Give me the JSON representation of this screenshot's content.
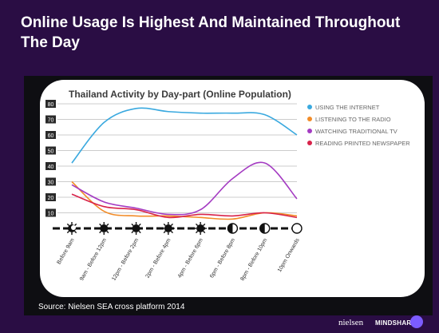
{
  "slide": {
    "title": "Online Usage Is Highest And Maintained Throughout The Day",
    "source": "Source: Nielsen SEA cross platform 2014",
    "logo_left": "nielsen",
    "logo_right": "MINDSHARE"
  },
  "chart_data": {
    "type": "line",
    "title": "Thailand Activity by Day-part (Online Population)",
    "xlabel": "",
    "ylabel": "",
    "ylim": [
      0,
      80
    ],
    "yticks": [
      10,
      20,
      30,
      40,
      50,
      60,
      70,
      80
    ],
    "grid": true,
    "legend_position": "right",
    "categories": [
      "Before 9am",
      "9am - Before 12pm",
      "12pm - Before 2pm",
      "2pm - Before 4pm",
      "4pm - Before 6pm",
      "6pm - Before 8pm",
      "8pm - Before 10pm",
      "10pm Onwards"
    ],
    "day_icons": [
      "moon-icon",
      "sun-icon",
      "sun-icon",
      "sun-icon",
      "sun-icon",
      "half-moon-icon",
      "half-moon-icon",
      "full-moon-icon"
    ],
    "series": [
      {
        "name": "USING THE INTERNET",
        "color": "#3aa9df",
        "values": [
          42,
          68,
          77,
          75,
          74,
          74,
          73,
          60
        ]
      },
      {
        "name": "LISTENING TO THE RADIO",
        "color": "#f28c28",
        "values": [
          30,
          11,
          8,
          8,
          7,
          6,
          10,
          8
        ]
      },
      {
        "name": "WATCHING TRADITIONAL TV",
        "color": "#a43bc2",
        "values": [
          28,
          17,
          13,
          9,
          12,
          32,
          42,
          19
        ]
      },
      {
        "name": "READING PRINTED NEWSPAPER",
        "color": "#d8234a",
        "values": [
          22,
          14,
          12,
          7,
          9,
          8,
          10,
          7
        ]
      }
    ]
  }
}
